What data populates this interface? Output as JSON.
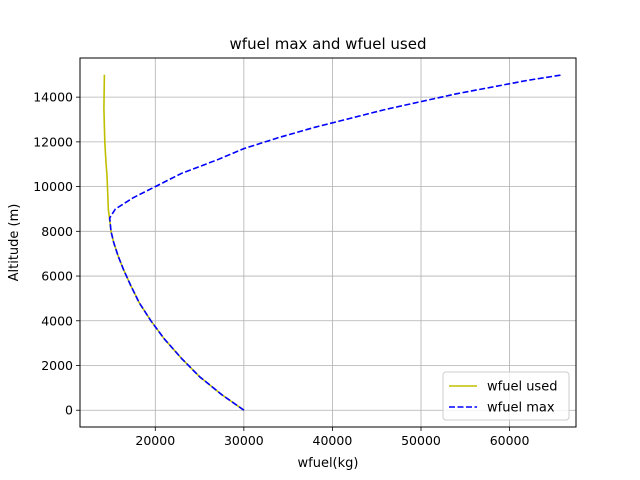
{
  "chart_data": {
    "type": "line",
    "title": "wfuel max and wfuel used",
    "xlabel": "wfuel(kg)",
    "ylabel": "Altitude (m)",
    "xlim": [
      11500,
      67500
    ],
    "ylim": [
      -750,
      15750
    ],
    "xticks": [
      20000,
      30000,
      40000,
      50000,
      60000
    ],
    "yticks": [
      0,
      2000,
      4000,
      6000,
      8000,
      10000,
      12000,
      14000
    ],
    "grid": true,
    "legend": "bottom-right",
    "series": [
      {
        "name": "wfuel used",
        "color": "#bfbf00",
        "style": "solid",
        "x": [
          30000,
          27500,
          25000,
          23000,
          21000,
          19500,
          18200,
          17200,
          16400,
          15800,
          15300,
          15000,
          14850,
          14700,
          14650,
          14550,
          14450,
          14300,
          14200,
          14250
        ],
        "y": [
          0,
          700,
          1500,
          2300,
          3200,
          4000,
          4800,
          5600,
          6300,
          6900,
          7500,
          8000,
          8500,
          9000,
          9500,
          10500,
          11000,
          12000,
          13500,
          15000
        ]
      },
      {
        "name": "wfuel max",
        "color": "#0000ff",
        "style": "dashed",
        "x": [
          30000,
          27500,
          25000,
          23000,
          21000,
          19500,
          18200,
          17200,
          16400,
          15800,
          15300,
          15000,
          14850,
          15500,
          17500,
          20000,
          23000,
          27000,
          30000,
          34000,
          38000,
          42000,
          46000,
          50000,
          54000,
          58000,
          62000,
          66000
        ],
        "y": [
          0,
          700,
          1500,
          2300,
          3200,
          4000,
          4800,
          5600,
          6300,
          6900,
          7500,
          8000,
          8600,
          9000,
          9500,
          10000,
          10600,
          11200,
          11700,
          12200,
          12650,
          13050,
          13450,
          13800,
          14150,
          14450,
          14750,
          15000
        ]
      }
    ]
  }
}
